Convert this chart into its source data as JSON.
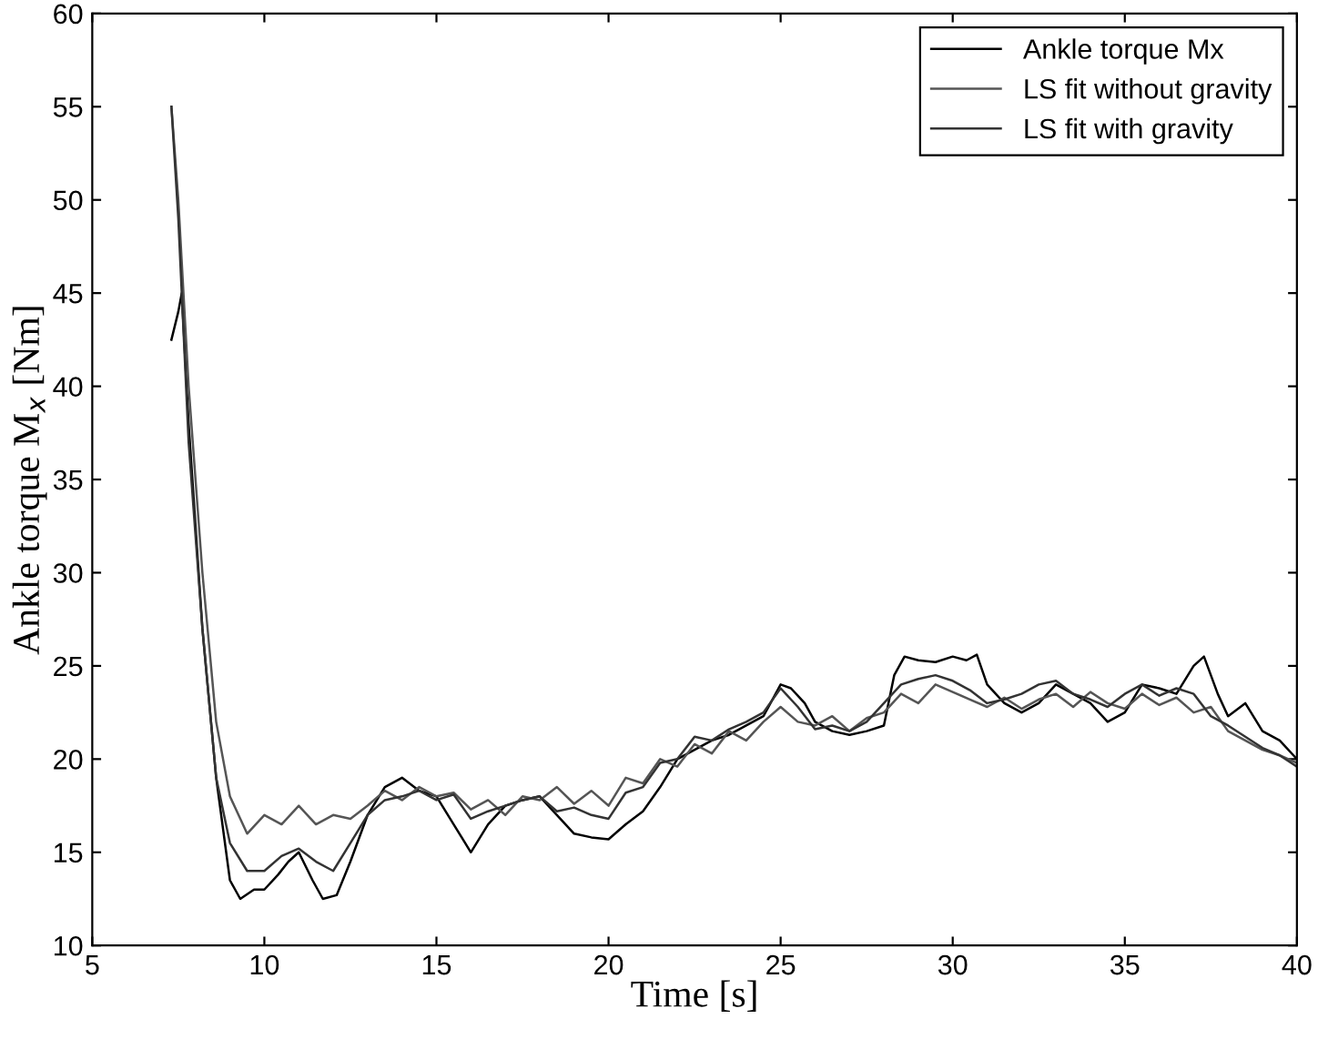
{
  "chart_data": {
    "type": "line",
    "xlabel": "Time [s]",
    "ylabel": "Ankle torque M$_{x}$ [Nm]",
    "xlim": [
      5,
      40
    ],
    "ylim": [
      10,
      60
    ],
    "xticks": [
      5,
      10,
      15,
      20,
      25,
      30,
      35,
      40
    ],
    "yticks": [
      10,
      15,
      20,
      25,
      30,
      35,
      40,
      45,
      50,
      55,
      60
    ],
    "grid": false,
    "legend": "top right",
    "line_style": "solid",
    "marker": "none",
    "series": [
      {
        "name": "Ankle torque Mx",
        "color": "#000000",
        "x": [
          7.3,
          7.5,
          7.6,
          7.8,
          8.2,
          8.6,
          9.0,
          9.3,
          9.7,
          10.0,
          10.4,
          10.7,
          11.0,
          11.4,
          11.7,
          12.1,
          12.5,
          13.0,
          13.5,
          14.0,
          14.5,
          15.0,
          15.5,
          16.0,
          16.5,
          17.0,
          17.5,
          18.0,
          18.5,
          19.0,
          19.5,
          20.0,
          20.5,
          21.0,
          21.5,
          22.0,
          22.5,
          23.0,
          23.5,
          24.0,
          24.5,
          25.0,
          25.3,
          25.7,
          26.0,
          26.5,
          27.0,
          27.5,
          28.0,
          28.3,
          28.6,
          29.0,
          29.5,
          30.0,
          30.4,
          30.7,
          31.0,
          31.5,
          32.0,
          32.5,
          33.0,
          33.5,
          34.0,
          34.5,
          35.0,
          35.5,
          36.0,
          36.5,
          37.0,
          37.3,
          37.7,
          38.0,
          38.5,
          39.0,
          39.5,
          40.0
        ],
        "values": [
          42.5,
          44,
          45,
          38,
          27,
          19,
          13.5,
          12.5,
          13,
          13,
          13.8,
          14.5,
          15,
          13.5,
          12.5,
          12.7,
          14.5,
          17,
          18.5,
          19,
          18.3,
          18,
          16.5,
          15,
          16.5,
          17.5,
          17.8,
          18,
          17,
          16,
          15.8,
          15.7,
          16.5,
          17.2,
          18.5,
          20,
          20.5,
          21,
          21.3,
          21.8,
          22.3,
          24,
          23.8,
          23,
          22,
          21.5,
          21.3,
          21.5,
          21.8,
          24.5,
          25.5,
          25.3,
          25.2,
          25.5,
          25.3,
          25.6,
          24,
          23,
          22.5,
          23,
          24,
          23.5,
          23,
          22,
          22.5,
          24,
          23.8,
          23.5,
          25,
          25.5,
          23.5,
          22.3,
          23,
          21.5,
          21,
          20
        ]
      },
      {
        "name": "LS fit without gravity",
        "color": "#555555",
        "x": [
          7.3,
          7.5,
          7.8,
          8.2,
          8.6,
          9.0,
          9.5,
          10.0,
          10.5,
          11.0,
          11.5,
          12.0,
          12.5,
          13.0,
          13.5,
          14.0,
          14.5,
          15.0,
          15.5,
          16.0,
          16.5,
          17.0,
          17.5,
          18.0,
          18.5,
          19.0,
          19.5,
          20.0,
          20.5,
          21.0,
          21.5,
          22.0,
          22.5,
          23.0,
          23.5,
          24.0,
          24.5,
          25.0,
          25.5,
          26.0,
          26.5,
          27.0,
          27.5,
          28.0,
          28.5,
          29.0,
          29.5,
          30.0,
          30.5,
          31.0,
          31.5,
          32.0,
          32.5,
          33.0,
          33.5,
          34.0,
          34.5,
          35.0,
          35.5,
          36.0,
          36.5,
          37.0,
          37.5,
          38.0,
          38.5,
          39.0,
          39.5,
          40.0
        ],
        "values": [
          55,
          50,
          40,
          30,
          22,
          18,
          16,
          17,
          16.5,
          17.5,
          16.5,
          17,
          16.8,
          17.5,
          18.3,
          17.8,
          18.5,
          18,
          18.2,
          17.3,
          17.8,
          17,
          18,
          17.8,
          18.5,
          17.6,
          18.3,
          17.5,
          19,
          18.7,
          20,
          19.6,
          20.8,
          20.3,
          21.5,
          21,
          22,
          22.8,
          22,
          21.8,
          22.3,
          21.5,
          22.2,
          22.5,
          23.5,
          23,
          24,
          23.6,
          23.2,
          22.8,
          23.3,
          22.7,
          23.2,
          23.5,
          22.8,
          23.6,
          23,
          22.7,
          23.5,
          22.9,
          23.3,
          22.5,
          22.8,
          21.5,
          21,
          20.5,
          20.2,
          19.8
        ]
      },
      {
        "name": "LS fit with gravity",
        "color": "#333333",
        "x": [
          7.3,
          7.5,
          7.8,
          8.2,
          8.6,
          9.0,
          9.5,
          10.0,
          10.5,
          11.0,
          11.5,
          12.0,
          12.5,
          13.0,
          13.5,
          14.0,
          14.5,
          15.0,
          15.5,
          16.0,
          16.5,
          17.0,
          17.5,
          18.0,
          18.5,
          19.0,
          19.5,
          20.0,
          20.5,
          21.0,
          21.5,
          22.0,
          22.5,
          23.0,
          23.5,
          24.0,
          24.5,
          25.0,
          25.5,
          26.0,
          26.5,
          27.0,
          27.5,
          28.0,
          28.5,
          29.0,
          29.5,
          30.0,
          30.5,
          31.0,
          31.5,
          32.0,
          32.5,
          33.0,
          33.5,
          34.0,
          34.5,
          35.0,
          35.5,
          36.0,
          36.5,
          37.0,
          37.5,
          38.0,
          38.5,
          39.0,
          39.5,
          40.0
        ],
        "values": [
          55,
          49,
          37,
          27,
          19,
          15.5,
          14,
          14,
          14.8,
          15.2,
          14.5,
          14,
          15.5,
          17,
          17.8,
          18,
          18.3,
          17.8,
          18.1,
          16.8,
          17.2,
          17.5,
          17.8,
          18,
          17.2,
          17.4,
          17,
          16.8,
          18.2,
          18.5,
          19.8,
          20,
          21.2,
          21,
          21.6,
          22,
          22.5,
          23.8,
          22.8,
          21.6,
          21.8,
          21.5,
          22,
          23,
          24,
          24.3,
          24.5,
          24.2,
          23.7,
          23,
          23.2,
          23.5,
          24,
          24.2,
          23.5,
          23.2,
          22.8,
          23.5,
          24,
          23.4,
          23.8,
          23.5,
          22.3,
          21.8,
          21.2,
          20.6,
          20.2,
          19.6
        ]
      }
    ]
  }
}
